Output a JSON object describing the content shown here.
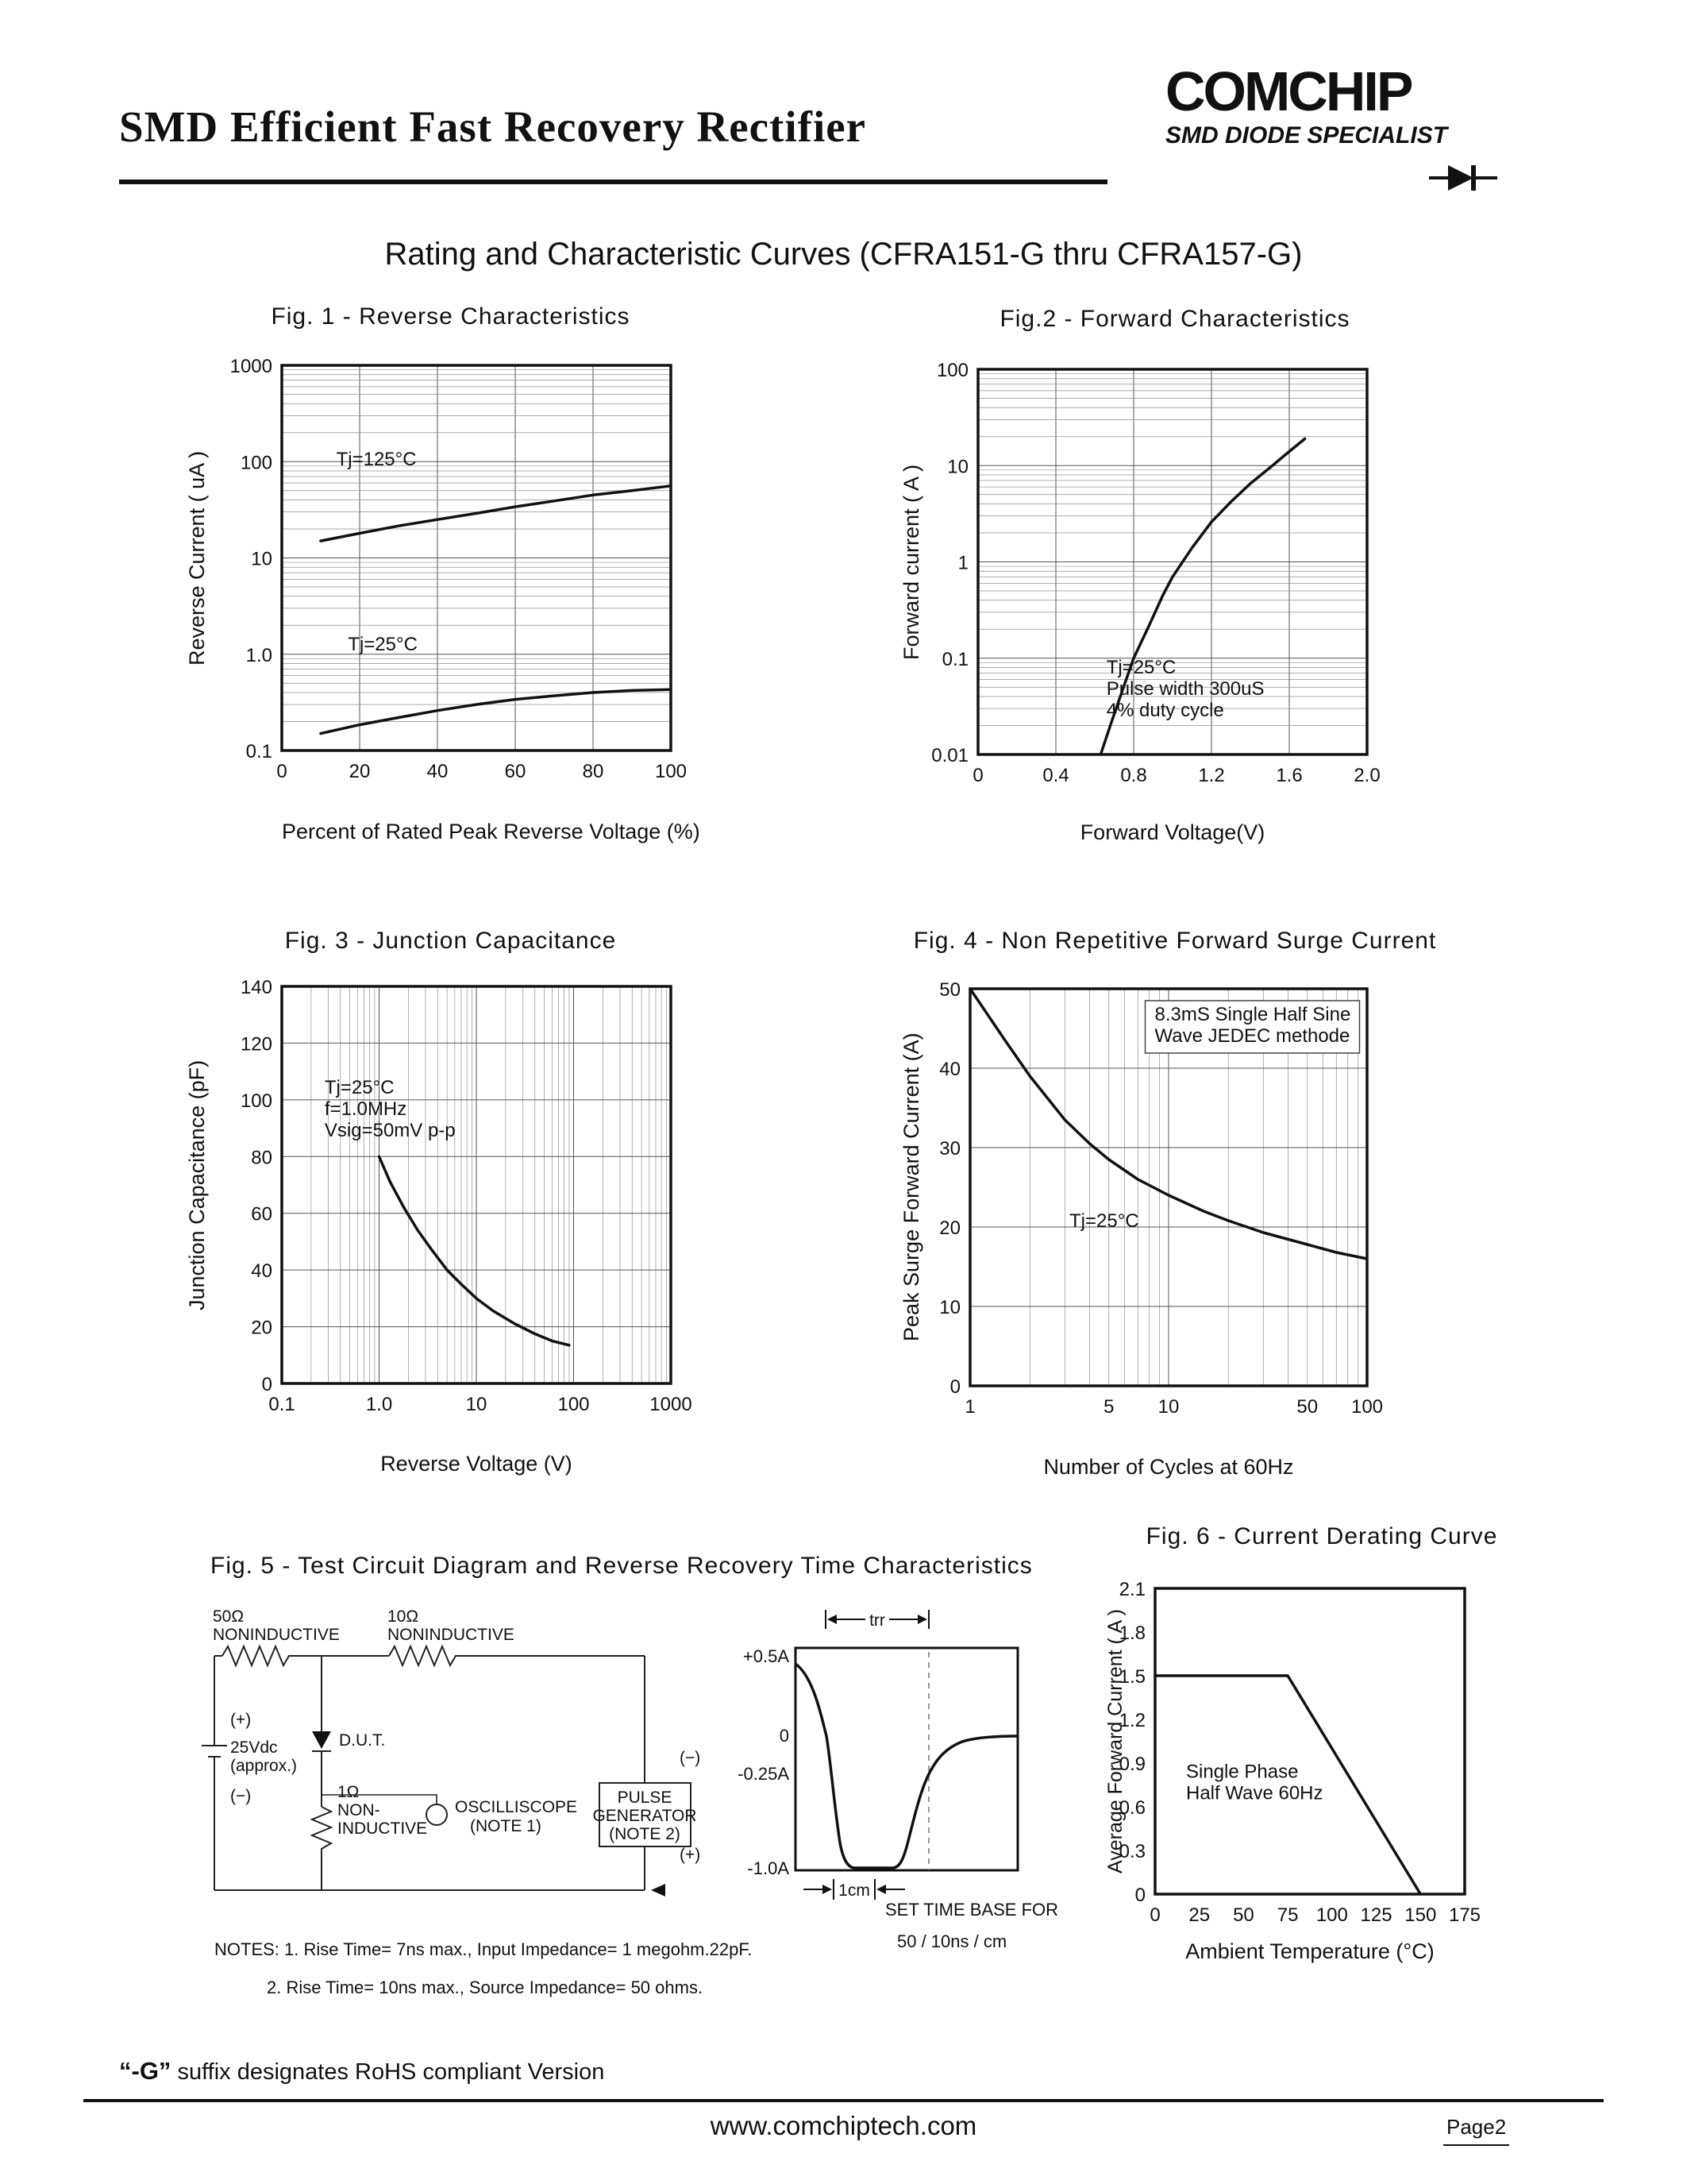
{
  "header": {
    "title": "SMD Efficient Fast Recovery Rectifier",
    "logo": "COMCHIP",
    "logo_sub": "SMD DIODE SPECIALIST"
  },
  "subtitle": "Rating and Characteristic Curves (CFRA151-G thru CFRA157-G)",
  "footer": {
    "rohs_g": "“-G”",
    "rohs_rest": " suffix designates RoHS compliant Version",
    "url": "www.comchiptech.com",
    "page": "Page2"
  },
  "chart_data": [
    {
      "type": "line",
      "title": "Fig. 1 -  Reverse Characteristics",
      "xlabel": "Percent of Rated Peak Reverse Voltage (%)",
      "ylabel": "Reverse Current ( uA )",
      "x": {
        "scale": "linear",
        "min": 0,
        "max": 100,
        "gstep": 20,
        "ticks": [
          0,
          20,
          40,
          60,
          80,
          100
        ]
      },
      "y": {
        "scale": "log",
        "min": 0.1,
        "max": 1000,
        "ticks": [
          {
            "v": 1000,
            "l": "1000"
          },
          {
            "v": 100,
            "l": "100"
          },
          {
            "v": 10,
            "l": "10"
          },
          {
            "v": 1,
            "l": "1.0"
          },
          {
            "v": 0.1,
            "l": "0.1"
          }
        ]
      },
      "series": [
        {
          "name": "Tj=125C",
          "points": [
            [
              10,
              15
            ],
            [
              20,
              18
            ],
            [
              30,
              21.5
            ],
            [
              40,
              25
            ],
            [
              50,
              29
            ],
            [
              60,
              34
            ],
            [
              70,
              39
            ],
            [
              80,
              45
            ],
            [
              90,
              50
            ],
            [
              100,
              56
            ]
          ]
        },
        {
          "name": "Tj=25C",
          "points": [
            [
              10,
              0.15
            ],
            [
              20,
              0.185
            ],
            [
              30,
              0.22
            ],
            [
              40,
              0.26
            ],
            [
              50,
              0.3
            ],
            [
              60,
              0.34
            ],
            [
              70,
              0.37
            ],
            [
              80,
              0.4
            ],
            [
              90,
              0.42
            ],
            [
              100,
              0.43
            ]
          ]
        }
      ],
      "annotations": [
        {
          "text": "Tj=125°C",
          "fx": 0.14,
          "fy": 0.26
        },
        {
          "text": "Tj=25°C",
          "fx": 0.17,
          "fy": 0.74
        }
      ]
    },
    {
      "type": "line",
      "title": "Fig.2 -  Forward Characteristics",
      "xlabel": "Forward Voltage(V)",
      "ylabel": "Forward current ( A )",
      "x": {
        "scale": "linear",
        "min": 0,
        "max": 2,
        "gstep": 0.4,
        "ticks": [
          {
            "v": 0,
            "l": "0"
          },
          {
            "v": 0.4,
            "l": "0.4"
          },
          {
            "v": 0.8,
            "l": "0.8"
          },
          {
            "v": 1.2,
            "l": "1.2"
          },
          {
            "v": 1.6,
            "l": "1.6"
          },
          {
            "v": 2,
            "l": "2.0"
          }
        ]
      },
      "y": {
        "scale": "log",
        "min": 0.01,
        "max": 100,
        "ticks": [
          {
            "v": 100,
            "l": "100"
          },
          {
            "v": 10,
            "l": "10"
          },
          {
            "v": 1,
            "l": "1"
          },
          {
            "v": 0.1,
            "l": "0.1"
          },
          {
            "v": 0.01,
            "l": "0.01"
          }
        ]
      },
      "series": [
        {
          "name": "VF",
          "points": [
            [
              0.63,
              0.01
            ],
            [
              0.68,
              0.02
            ],
            [
              0.74,
              0.045
            ],
            [
              0.8,
              0.1
            ],
            [
              0.88,
              0.22
            ],
            [
              0.95,
              0.45
            ],
            [
              1.0,
              0.7
            ],
            [
              1.1,
              1.4
            ],
            [
              1.2,
              2.6
            ],
            [
              1.3,
              4.2
            ],
            [
              1.4,
              6.5
            ],
            [
              1.5,
              9.5
            ],
            [
              1.6,
              14
            ],
            [
              1.68,
              19
            ]
          ]
        }
      ],
      "annotations": [
        {
          "text": "Tj=25°C\nPulse width 300uS\n4% duty cycle",
          "fx": 0.33,
          "fy": 0.79
        }
      ]
    },
    {
      "type": "line",
      "title": "Fig. 3 - Junction Capacitance",
      "xlabel": "Reverse Voltage (V)",
      "ylabel": "Junction Capacitance  (pF)",
      "x": {
        "scale": "log",
        "min": 0.1,
        "max": 1000,
        "ticks": [
          {
            "v": 0.1,
            "l": "0.1"
          },
          {
            "v": 1,
            "l": "1.0"
          },
          {
            "v": 10,
            "l": "10"
          },
          {
            "v": 100,
            "l": "100"
          },
          {
            "v": 1000,
            "l": "1000"
          }
        ]
      },
      "y": {
        "scale": "linear",
        "min": 0,
        "max": 140,
        "gstep": 20,
        "ticks": [
          0,
          20,
          40,
          60,
          80,
          100,
          120,
          140
        ]
      },
      "series": [
        {
          "name": "Cj",
          "points": [
            [
              1,
              80
            ],
            [
              1.3,
              71
            ],
            [
              1.8,
              62
            ],
            [
              2.5,
              54
            ],
            [
              3.5,
              47
            ],
            [
              5,
              40
            ],
            [
              7,
              35
            ],
            [
              10,
              30
            ],
            [
              15,
              25.5
            ],
            [
              25,
              21
            ],
            [
              40,
              17.5
            ],
            [
              60,
              15
            ],
            [
              90,
              13.5
            ]
          ]
        }
      ],
      "annotations": [
        {
          "text": "Tj=25°C\nf=1.0MHz\nVsig=50mV p-p",
          "fx": 0.11,
          "fy": 0.27
        }
      ]
    },
    {
      "type": "line",
      "title": "Fig. 4 - Non Repetitive Forward Surge Current",
      "xlabel": "Number of Cycles at 60Hz",
      "ylabel": "Peak Surge Forward Current (A)",
      "x": {
        "scale": "log",
        "min": 1,
        "max": 100,
        "ticks": [
          {
            "v": 1,
            "l": "1"
          },
          {
            "v": 5,
            "l": "5"
          },
          {
            "v": 10,
            "l": "10"
          },
          {
            "v": 50,
            "l": "50"
          },
          {
            "v": 100,
            "l": "100"
          }
        ]
      },
      "y": {
        "scale": "linear",
        "min": 0,
        "max": 50,
        "gstep": 10,
        "ticks": [
          0,
          10,
          20,
          30,
          40,
          50
        ]
      },
      "series": [
        {
          "name": "IFSM",
          "points": [
            [
              1,
              50
            ],
            [
              1.5,
              43.5
            ],
            [
              2,
              39
            ],
            [
              3,
              33.5
            ],
            [
              4,
              30.5
            ],
            [
              5,
              28.5
            ],
            [
              7,
              26
            ],
            [
              10,
              24
            ],
            [
              15,
              22
            ],
            [
              20,
              20.8
            ],
            [
              30,
              19.3
            ],
            [
              50,
              17.8
            ],
            [
              70,
              16.8
            ],
            [
              100,
              16
            ]
          ]
        }
      ],
      "annotations": [
        {
          "text": "8.3mS Single Half Sine\nWave JEDEC methode",
          "fx": 0.465,
          "fy": 0.08,
          "boxed": true,
          "bw": 270
        },
        {
          "text": "Tj=25°C",
          "fx": 0.25,
          "fy": 0.6
        }
      ]
    },
    {
      "type": "line",
      "title": "Fig. 6 - Current Derating Curve",
      "xlabel": "Ambient Temperature (°C)",
      "ylabel": "Average Forward Current ( A )",
      "grid": "none",
      "x": {
        "scale": "linear",
        "min": 0,
        "max": 175,
        "ticks": [
          0,
          25,
          50,
          75,
          100,
          125,
          150,
          175
        ]
      },
      "y": {
        "scale": "linear",
        "min": 0,
        "max": 2.1,
        "ticks": [
          {
            "v": 0,
            "l": "0"
          },
          {
            "v": 0.3,
            "l": "0.3"
          },
          {
            "v": 0.6,
            "l": "0.6"
          },
          {
            "v": 0.9,
            "l": "0.9"
          },
          {
            "v": 1.2,
            "l": "1.2"
          },
          {
            "v": 1.5,
            "l": "1.5"
          },
          {
            "v": 1.8,
            "l": "1.8"
          },
          {
            "v": 2.1,
            "l": "2.1"
          }
        ]
      },
      "series": [
        {
          "name": "derating",
          "points": [
            [
              0,
              1.5
            ],
            [
              75,
              1.5
            ],
            [
              150,
              0
            ]
          ]
        }
      ],
      "annotations": [
        {
          "text": "Single Phase\nHalf Wave 60Hz",
          "fx": 0.1,
          "fy": 0.62
        }
      ]
    }
  ],
  "fig5": {
    "title": "Fig. 5 - Test Circuit Diagram and Reverse Recovery Time Characteristics",
    "labels": {
      "r50": "50Ω",
      "r50b": "NONINDUCTIVE",
      "r10": "10Ω",
      "r10b": "NONINDUCTIVE",
      "plus": "(+)",
      "vdc": "25Vdc",
      "vdc2": "(approx.)",
      "minus": "(−)",
      "dut": "D.U.T.",
      "r1": "1Ω",
      "r1b": "NON-",
      "r1c": "INDUCTIVE",
      "scope": "OSCILLISCOPE",
      "scope2": "(NOTE 1)",
      "pulse1": "PULSE",
      "pulse2": "GENERATOR",
      "pulse3": "(NOTE 2)",
      "pg_minus": "(−)",
      "pg_plus": "(+)",
      "note1": "NOTES: 1. Rise Time= 7ns max., Input Impedance= 1 megohm.22pF.",
      "note2": "2. Rise Time= 10ns max., Source Impedance= 50 ohms."
    },
    "waveform": {
      "trr": "trr",
      "a1": "+0.5A",
      "a0": "0",
      "a2": "-0.25A",
      "a3": "-1.0A",
      "cm": "1cm",
      "tb1": "SET TIME BASE FOR",
      "tb2": "50 / 10ns / cm"
    }
  }
}
